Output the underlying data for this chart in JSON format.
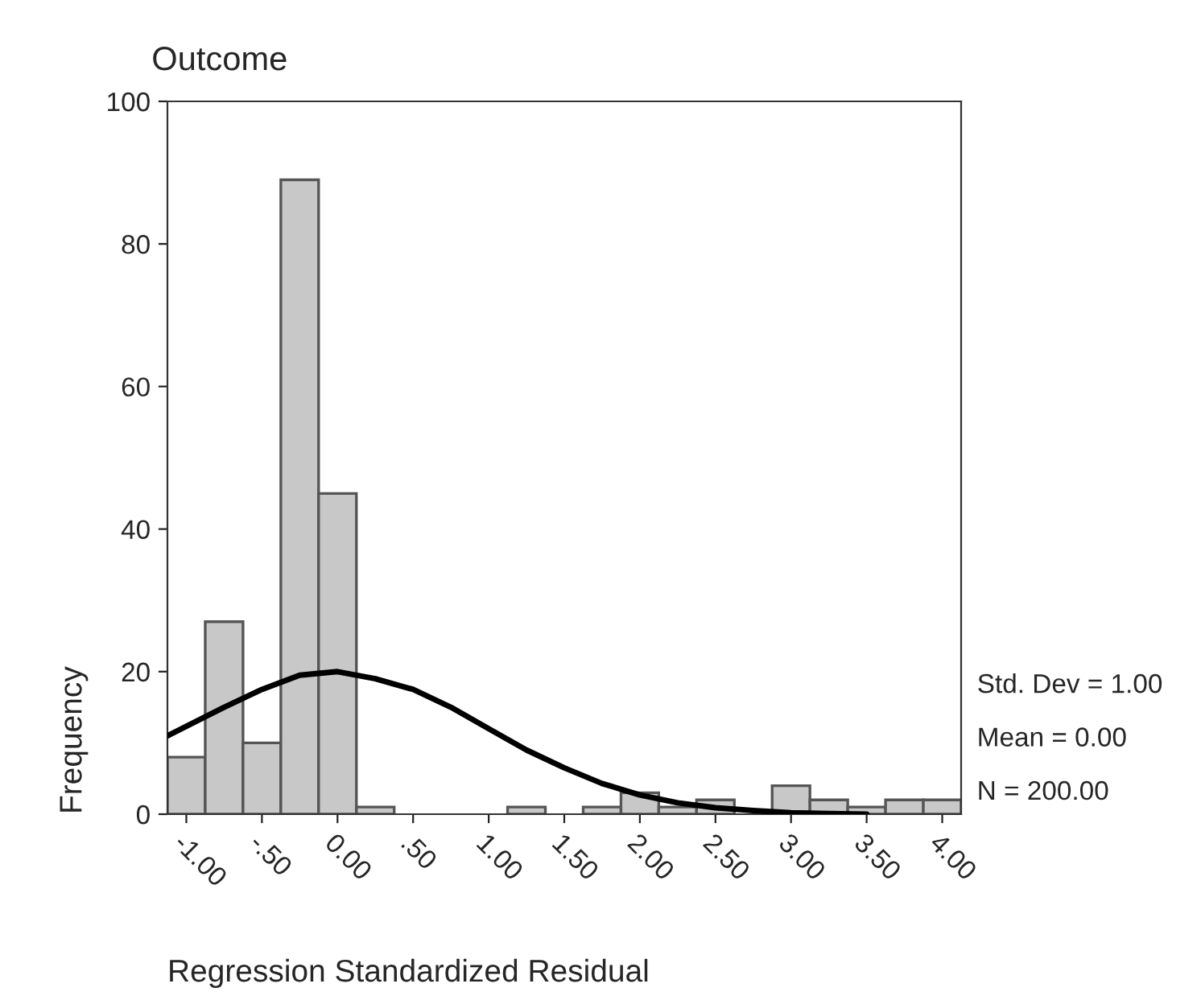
{
  "chart_data": {
    "type": "histogram",
    "title": "Outcome",
    "xlabel": "Regression Standardized Residual",
    "ylabel": "Frequency",
    "bins": [
      -1.125,
      -0.875,
      -0.625,
      -0.375,
      -0.125,
      0.125,
      0.375,
      0.625,
      0.875,
      1.125,
      1.375,
      1.625,
      1.875,
      2.125,
      2.375,
      2.625,
      2.875,
      3.125,
      3.375,
      3.625,
      3.875,
      4.125
    ],
    "values": [
      8,
      27,
      10,
      89,
      45,
      1,
      0,
      0,
      0,
      1,
      0,
      1,
      3,
      1,
      2,
      0,
      4,
      2,
      1,
      2,
      2
    ],
    "color": "#c8c8c8",
    "series": [
      {
        "type": "line",
        "color": "#000000",
        "x": [
          -1.125,
          -0.75,
          -0.5,
          -0.25,
          0,
          0.25,
          0.5,
          0.75,
          1,
          1.25,
          1.5,
          1.75,
          2,
          2.25,
          2.5,
          2.75,
          3,
          3.25,
          3.5
        ],
        "values": [
          11,
          15,
          17.5,
          19.5,
          20,
          19,
          17.5,
          15,
          12,
          9,
          6.5,
          4.3,
          2.7,
          1.6,
          0.9,
          0.5,
          0.2,
          0.1,
          0
        ]
      }
    ],
    "xlim": [
      -1.125,
      4.125
    ],
    "ylim": [
      0,
      100
    ],
    "xticks": [
      {
        "value": -1,
        "label": "-1.00"
      },
      {
        "value": -0.5,
        "label": "-.50"
      },
      {
        "value": 0,
        "label": "0.00"
      },
      {
        "value": 0.5,
        "label": ".50"
      },
      {
        "value": 1,
        "label": "1.00"
      },
      {
        "value": 1.5,
        "label": "1.50"
      },
      {
        "value": 2,
        "label": "2.00"
      },
      {
        "value": 2.5,
        "label": "2.50"
      },
      {
        "value": 3,
        "label": "3.00"
      },
      {
        "value": 3.5,
        "label": "3.50"
      },
      {
        "value": 4,
        "label": "4.00"
      }
    ],
    "yticks": [
      0,
      20,
      40,
      60,
      80,
      100
    ],
    "annotations": [
      "Std. Dev = 1.00",
      "Mean = 0.00",
      "N = 200.00"
    ],
    "grid": false
  }
}
